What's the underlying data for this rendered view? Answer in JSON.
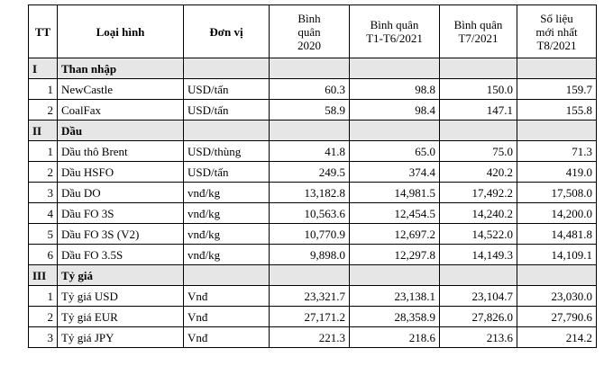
{
  "headers": {
    "tt": "TT",
    "type": "Loại hình",
    "unit": "Đơn vị",
    "avg2020": [
      "Bình",
      "quân",
      "2020"
    ],
    "avgH1": [
      "Bình quân",
      "T1-T6/2021"
    ],
    "avgJul": [
      "Bình quân",
      "T7/2021"
    ],
    "latest": [
      "Số liệu",
      "mới nhất",
      "T8/2021"
    ]
  },
  "groups": [
    {
      "roman": "I",
      "name": "Than nhập",
      "rows": [
        {
          "no": "1",
          "name": "NewCastle",
          "unit": "USD/tấn",
          "v2020": "60.3",
          "vH1": "98.8",
          "vJul": "150.0",
          "vLatest": "159.7"
        },
        {
          "no": "2",
          "name": "CoalFax",
          "unit": "USD/tấn",
          "v2020": "58.9",
          "vH1": "98.4",
          "vJul": "147.1",
          "vLatest": "155.8"
        }
      ]
    },
    {
      "roman": "II",
      "name": "Dầu",
      "rows": [
        {
          "no": "1",
          "name": "Dầu thô Brent",
          "unit": "USD/thùng",
          "v2020": "41.8",
          "vH1": "65.0",
          "vJul": "75.0",
          "vLatest": "71.3"
        },
        {
          "no": "2",
          "name": "Dầu HSFO",
          "unit": "USD/tấn",
          "v2020": "249.5",
          "vH1": "374.4",
          "vJul": "420.2",
          "vLatest": "419.0"
        },
        {
          "no": "3",
          "name": "Dầu DO",
          "unit": "vnđ/kg",
          "v2020": "13,182.8",
          "vH1": "14,981.5",
          "vJul": "17,492.2",
          "vLatest": "17,508.0"
        },
        {
          "no": "4",
          "name": "Dầu FO 3S",
          "unit": "vnđ/kg",
          "v2020": "10,563.6",
          "vH1": "12,454.5",
          "vJul": "14,240.2",
          "vLatest": "14,200.0"
        },
        {
          "no": "5",
          "name": "Dầu FO 3S (V2)",
          "unit": "vnđ/kg",
          "v2020": "10,770.9",
          "vH1": "12,697.2",
          "vJul": "14,522.0",
          "vLatest": "14,481.8"
        },
        {
          "no": "6",
          "name": "Dầu FO 3.5S",
          "unit": "vnđ/kg",
          "v2020": "9,898.0",
          "vH1": "12,297.8",
          "vJul": "14,149.3",
          "vLatest": "14,109.1"
        }
      ]
    },
    {
      "roman": "III",
      "name": "Tỷ giá",
      "rows": [
        {
          "no": "1",
          "name": "Tỷ giá USD",
          "unit": "Vnđ",
          "v2020": "23,321.7",
          "vH1": "23,138.1",
          "vJul": "23,104.7",
          "vLatest": "23,030.0"
        },
        {
          "no": "2",
          "name": "Tỷ giá EUR",
          "unit": "Vnđ",
          "v2020": "27,171.2",
          "vH1": "28,358.9",
          "vJul": "27,826.0",
          "vLatest": "27,790.6"
        },
        {
          "no": "3",
          "name": "Tỷ giá JPY",
          "unit": "Vnđ",
          "v2020": "221.3",
          "vH1": "218.6",
          "vJul": "213.6",
          "vLatest": "214.2"
        }
      ]
    }
  ]
}
